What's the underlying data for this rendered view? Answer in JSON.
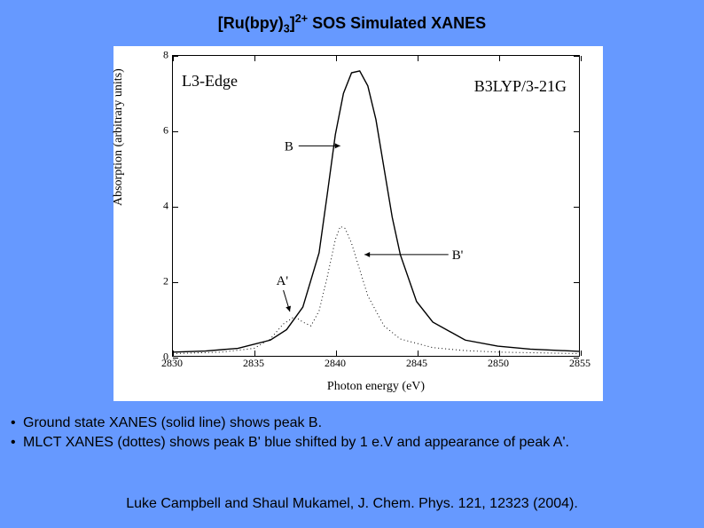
{
  "background_color": "#6699ff",
  "title_parts": {
    "prefix": "[Ru(bpy)",
    "sub": "3",
    "mid": "]",
    "sup": "2+",
    "rest": " SOS Simulated XANES"
  },
  "annot_left": "L3-Edge",
  "annot_right": "B3LYP/3-21G",
  "chart": {
    "type": "line",
    "xlabel": "Photon energy (eV)",
    "ylabel": "Absorption (arbitrary units)",
    "xlim": [
      2830,
      2855
    ],
    "ylim": [
      0,
      8
    ],
    "xticks": [
      2830,
      2835,
      2840,
      2845,
      2850,
      2855
    ],
    "yticks": [
      0,
      2,
      4,
      6,
      8
    ],
    "line_color": "#000000",
    "line_width_solid": 1.4,
    "line_width_dotted": 1.0,
    "dotted_dash": "1 3",
    "series_solid": {
      "x": [
        2830,
        2832,
        2834,
        2836,
        2837,
        2838,
        2839,
        2839.5,
        2840,
        2840.5,
        2841,
        2841.5,
        2842,
        2842.5,
        2843,
        2843.5,
        2844,
        2845,
        2846,
        2848,
        2850,
        2852,
        2855
      ],
      "y": [
        0.1,
        0.13,
        0.2,
        0.42,
        0.7,
        1.3,
        2.75,
        4.3,
        5.9,
        7.0,
        7.55,
        7.6,
        7.2,
        6.3,
        5.0,
        3.7,
        2.7,
        1.45,
        0.9,
        0.42,
        0.26,
        0.18,
        0.12
      ]
    },
    "series_dotted": {
      "x": [
        2830,
        2833,
        2835,
        2836,
        2836.8,
        2837.5,
        2838,
        2838.5,
        2839,
        2839.5,
        2840,
        2840.3,
        2840.6,
        2841,
        2841.5,
        2842,
        2843,
        2844,
        2846,
        2848,
        2850,
        2855
      ],
      "y": [
        0.06,
        0.1,
        0.2,
        0.45,
        0.85,
        1.05,
        0.9,
        0.8,
        1.2,
        2.1,
        3.1,
        3.45,
        3.4,
        3.0,
        2.3,
        1.6,
        0.8,
        0.45,
        0.22,
        0.14,
        0.1,
        0.06
      ]
    },
    "peak_labels": {
      "B": {
        "text": "B",
        "x_ev": 2838.5,
        "y_u": 5.6,
        "arrow_to_x": 2840.3,
        "arrow_to_y": 5.6
      },
      "Bp": {
        "text": "B'",
        "x_ev": 2846.2,
        "y_u": 2.7,
        "arrow_to_x": 2841.8,
        "arrow_to_y": 2.7
      },
      "Ap": {
        "text": "A'",
        "x_ev": 2836.8,
        "y_u": 1.75,
        "arrow_to_x": 2837.2,
        "arrow_to_y": 1.18
      }
    }
  },
  "bullets": [
    "Ground state XANES (solid line) shows peak B.",
    "MLCT XANES (dottes) shows peak B' blue shifted by 1 e.V and appearance of peak A'."
  ],
  "citation": "Luke Campbell and Shaul Mukamel, J. Chem. Phys. 121, 12323 (2004)."
}
